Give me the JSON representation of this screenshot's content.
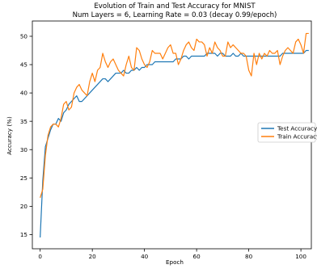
{
  "chart_data": {
    "type": "line",
    "title": "Evolution of Train and Test Accuracy for MNIST",
    "subtitle": "Num Layers = 6, Learning Rate = 0.03 (decay 0.99/epoch)",
    "xlabel": "Epoch",
    "ylabel": "Accuracy (%)",
    "xlim": [
      -3,
      104
    ],
    "ylim": [
      12.5,
      52.7
    ],
    "xticks": [
      0,
      20,
      40,
      60,
      80,
      100
    ],
    "yticks": [
      15,
      20,
      25,
      30,
      35,
      40,
      45,
      50
    ],
    "grid": false,
    "legend_position": "center-right",
    "series": [
      {
        "name": "Test Accuracy",
        "color": "#1f77b4",
        "values": [
          14.5,
          24.5,
          30.5,
          32.0,
          33.5,
          34.5,
          34.5,
          35.5,
          35.0,
          36.5,
          37.0,
          38.0,
          38.5,
          39.0,
          39.5,
          38.5,
          38.5,
          39.0,
          39.5,
          40.0,
          40.5,
          41.0,
          41.5,
          42.0,
          42.5,
          42.5,
          42.0,
          42.5,
          43.0,
          43.5,
          43.5,
          43.5,
          44.0,
          43.5,
          43.5,
          44.0,
          44.0,
          44.5,
          44.0,
          44.5,
          44.5,
          45.0,
          45.0,
          45.0,
          45.5,
          45.5,
          45.5,
          45.5,
          45.5,
          45.5,
          45.5,
          45.5,
          46.0,
          46.0,
          46.0,
          46.5,
          46.5,
          46.0,
          46.5,
          46.5,
          46.5,
          46.5,
          46.5,
          46.5,
          47.0,
          47.0,
          47.0,
          47.0,
          46.5,
          47.0,
          47.0,
          46.5,
          46.5,
          46.5,
          47.0,
          46.5,
          46.5,
          47.0,
          46.5,
          46.5,
          46.5,
          46.5,
          46.5,
          46.5,
          46.5,
          46.5,
          46.5,
          46.5,
          46.5,
          46.5,
          46.5,
          46.5,
          46.5,
          47.0,
          47.0,
          47.0,
          47.0,
          47.0,
          47.0,
          47.0,
          47.0,
          47.0,
          47.5,
          47.5
        ]
      },
      {
        "name": "Train Accuracy",
        "color": "#ff7f0e",
        "values": [
          21.5,
          23.0,
          29.0,
          32.5,
          34.0,
          34.5,
          34.5,
          34.0,
          35.5,
          38.0,
          38.5,
          37.0,
          37.5,
          40.0,
          41.0,
          41.5,
          40.5,
          40.0,
          39.5,
          42.0,
          43.5,
          42.0,
          44.0,
          44.5,
          47.0,
          45.5,
          44.5,
          45.5,
          46.0,
          45.0,
          44.0,
          43.5,
          43.0,
          45.0,
          46.5,
          44.5,
          44.0,
          48.0,
          47.5,
          46.0,
          45.0,
          44.5,
          45.5,
          47.5,
          47.0,
          47.0,
          47.0,
          46.0,
          47.0,
          48.0,
          48.5,
          47.0,
          47.0,
          45.0,
          46.0,
          47.5,
          48.5,
          49.0,
          48.0,
          47.5,
          49.5,
          49.0,
          49.0,
          48.5,
          46.5,
          48.0,
          47.0,
          49.0,
          48.0,
          47.5,
          46.5,
          46.5,
          49.0,
          48.0,
          48.5,
          48.0,
          47.5,
          47.0,
          47.0,
          46.5,
          44.0,
          43.0,
          47.0,
          45.0,
          47.0,
          46.0,
          47.0,
          46.5,
          47.5,
          47.0,
          47.0,
          47.5,
          45.0,
          46.5,
          47.5,
          48.0,
          47.5,
          47.0,
          49.0,
          49.5,
          48.5,
          47.0,
          50.5,
          50.5
        ]
      }
    ]
  }
}
